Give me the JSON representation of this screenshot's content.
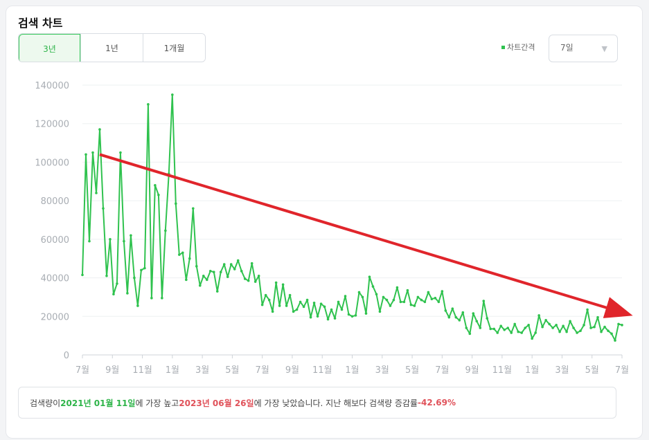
{
  "panel": {
    "title": "검색 차트",
    "range_tabs": [
      "3년",
      "1년",
      "1개월"
    ],
    "active_tab": "3년",
    "interval_label": "차트간격",
    "interval_value": "7일"
  },
  "summary": {
    "prefix": "검색량이 ",
    "high_date": "2021년 01월 11일",
    "mid": "에 가장 높고 ",
    "low_date": "2023년 06월 26일",
    "suffix": "에 가장 낮았습니다. 지난 해보다 검색량 증감률 ",
    "change": "-42.69%"
  },
  "colors": {
    "line": "#2fc24e",
    "arrow": "#e0252b",
    "high": "#2fb44a",
    "low": "#e0525a"
  },
  "chart_data": {
    "type": "line",
    "ylim": [
      0,
      140000
    ],
    "yticks": [
      0,
      20000,
      40000,
      60000,
      80000,
      100000,
      120000,
      140000
    ],
    "xtick_labels": [
      "7월",
      "9월",
      "11월",
      "1월",
      "3월",
      "5월",
      "7월",
      "9월",
      "11월",
      "1월",
      "3월",
      "5월",
      "7월",
      "9월",
      "11월",
      "1월",
      "3월",
      "5월",
      "7월"
    ],
    "grid": true,
    "annotations": [
      {
        "type": "arrow",
        "from": {
          "week": 5,
          "value": 104000
        },
        "to": {
          "week": 160,
          "value": 20500
        }
      }
    ],
    "series": [
      {
        "values": [
          41500,
          104000,
          59000,
          105000,
          84000,
          117000,
          76000,
          41000,
          60000,
          31500,
          37000,
          105000,
          59000,
          32000,
          62000,
          40000,
          25500,
          44000,
          45000,
          130000,
          29500,
          88000,
          83000,
          29500,
          64500,
          94000,
          135000,
          78500,
          52000,
          53000,
          39000,
          50000,
          76000,
          46000,
          36000,
          41000,
          39000,
          43500,
          43000,
          33000,
          43000,
          47000,
          40500,
          47000,
          44500,
          49000,
          43500,
          39500,
          38500,
          47500,
          38000,
          41000,
          26000,
          31000,
          28500,
          22500,
          37500,
          25500,
          36500,
          25500,
          31000,
          22500,
          23500,
          27500,
          25000,
          28500,
          19500,
          27000,
          20000,
          26500,
          25000,
          18500,
          23500,
          19000,
          27500,
          23500,
          30500,
          21000,
          20000,
          20500,
          32500,
          30000,
          21500,
          40500,
          35500,
          31500,
          22500,
          30000,
          28500,
          25500,
          28500,
          35000,
          27500,
          27500,
          33500,
          26000,
          25500,
          30000,
          28500,
          27500,
          32500,
          29000,
          29500,
          27500,
          33000,
          23000,
          19500,
          24000,
          19500,
          18000,
          22000,
          14000,
          11000,
          21500,
          17500,
          14000,
          28000,
          19000,
          13500,
          13500,
          11500,
          15000,
          13000,
          14000,
          11500,
          16000,
          12000,
          11500,
          14000,
          15500,
          8500,
          11500,
          20500,
          14500,
          18000,
          16000,
          14000,
          15500,
          12000,
          15000,
          12000,
          17500,
          14000,
          11500,
          12500,
          15500,
          23500,
          14000,
          14500,
          19500,
          12000,
          14500,
          12500,
          11000,
          7500,
          16000,
          15500
        ]
      }
    ]
  }
}
